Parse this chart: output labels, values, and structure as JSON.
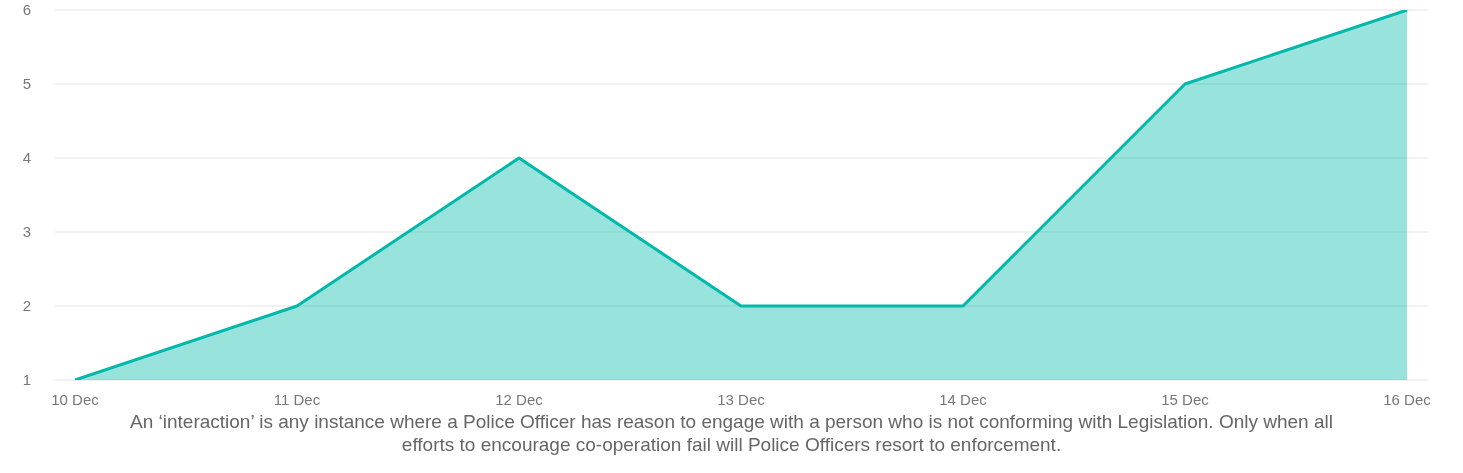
{
  "chart_data": {
    "type": "area",
    "categories": [
      "10 Dec",
      "11 Dec",
      "12 Dec",
      "13 Dec",
      "14 Dec",
      "15 Dec",
      "16 Dec"
    ],
    "values": [
      1,
      2,
      4,
      2,
      2,
      5,
      6
    ],
    "color": "#01b8aa",
    "ylim": [
      1,
      6
    ],
    "yticks": [
      1,
      2,
      3,
      4,
      5,
      6
    ],
    "grid": "y",
    "annotations": [
      "An ‘interaction’ is any instance where a Police Officer has reason to engage with a person who is not conforming with Legislation. Only when all efforts to encourage co-operation fail will Police Officers resort to enforcement."
    ]
  }
}
